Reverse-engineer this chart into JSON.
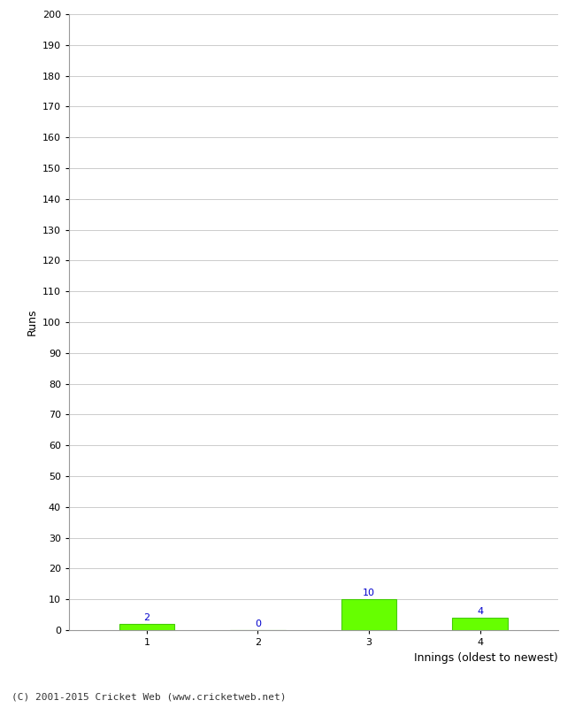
{
  "categories": [
    1,
    2,
    3,
    4
  ],
  "values": [
    2,
    0,
    10,
    4
  ],
  "bar_color": "#66ff00",
  "bar_edge_color": "#44cc00",
  "label_color": "#0000cc",
  "ylabel": "Runs",
  "xlabel": "Innings (oldest to newest)",
  "ylim": [
    0,
    200
  ],
  "yticks": [
    0,
    10,
    20,
    30,
    40,
    50,
    60,
    70,
    80,
    90,
    100,
    110,
    120,
    130,
    140,
    150,
    160,
    170,
    180,
    190,
    200
  ],
  "footer": "(C) 2001-2015 Cricket Web (www.cricketweb.net)",
  "background_color": "#ffffff",
  "grid_color": "#cccccc",
  "bar_width": 0.5,
  "label_fontsize": 8,
  "tick_fontsize": 8,
  "axis_label_fontsize": 9,
  "footer_fontsize": 8
}
